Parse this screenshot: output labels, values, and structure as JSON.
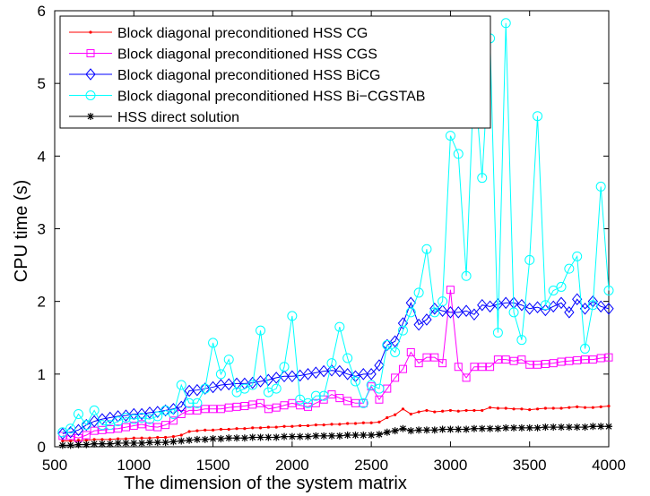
{
  "chart_data": {
    "type": "line",
    "xlabel": "The  dimension of the system matrix",
    "ylabel": "CPU time (s)",
    "xlim": [
      500,
      4000
    ],
    "ylim": [
      0,
      6
    ],
    "xticks": [
      500,
      1000,
      1500,
      2000,
      2500,
      3000,
      3500,
      4000
    ],
    "yticks": [
      0,
      1,
      2,
      3,
      4,
      5,
      6
    ],
    "grid": false,
    "legend_position": "top-left",
    "x": [
      550,
      600,
      650,
      700,
      750,
      800,
      850,
      900,
      950,
      1000,
      1050,
      1100,
      1150,
      1200,
      1250,
      1300,
      1350,
      1400,
      1450,
      1500,
      1550,
      1600,
      1650,
      1700,
      1750,
      1800,
      1850,
      1900,
      1950,
      2000,
      2050,
      2100,
      2150,
      2200,
      2250,
      2300,
      2350,
      2400,
      2450,
      2500,
      2550,
      2600,
      2650,
      2700,
      2750,
      2800,
      2850,
      2900,
      2950,
      3000,
      3050,
      3100,
      3150,
      3200,
      3250,
      3300,
      3350,
      3400,
      3450,
      3500,
      3550,
      3600,
      3650,
      3700,
      3750,
      3800,
      3850,
      3900,
      3950,
      4000
    ],
    "series": [
      {
        "name": "Block diagonal preconditioned HSS CG",
        "color": "#ff0000",
        "marker": "dot",
        "values": [
          0.08,
          0.08,
          0.09,
          0.09,
          0.1,
          0.1,
          0.1,
          0.11,
          0.11,
          0.12,
          0.12,
          0.12,
          0.13,
          0.13,
          0.14,
          0.16,
          0.21,
          0.22,
          0.23,
          0.23,
          0.24,
          0.24,
          0.25,
          0.25,
          0.26,
          0.26,
          0.27,
          0.27,
          0.28,
          0.28,
          0.29,
          0.29,
          0.3,
          0.3,
          0.31,
          0.31,
          0.32,
          0.32,
          0.33,
          0.33,
          0.34,
          0.4,
          0.44,
          0.52,
          0.45,
          0.48,
          0.5,
          0.48,
          0.49,
          0.5,
          0.49,
          0.5,
          0.5,
          0.5,
          0.54,
          0.53,
          0.53,
          0.52,
          0.52,
          0.51,
          0.52,
          0.53,
          0.53,
          0.53,
          0.54,
          0.55,
          0.54,
          0.54,
          0.55,
          0.56
        ]
      },
      {
        "name": "Block diagonal preconditioned HSS CGS",
        "color": "#ff00ff",
        "marker": "square",
        "values": [
          0.15,
          0.15,
          0.12,
          0.16,
          0.22,
          0.23,
          0.24,
          0.25,
          0.27,
          0.29,
          0.31,
          0.28,
          0.27,
          0.3,
          0.36,
          0.45,
          0.5,
          0.5,
          0.52,
          0.52,
          0.52,
          0.54,
          0.55,
          0.56,
          0.58,
          0.6,
          0.52,
          0.54,
          0.57,
          0.6,
          0.57,
          0.55,
          0.6,
          0.65,
          0.72,
          0.67,
          0.63,
          0.6,
          0.6,
          0.83,
          0.65,
          0.8,
          0.95,
          1.07,
          1.3,
          1.15,
          1.23,
          1.23,
          1.15,
          2.16,
          1.1,
          0.95,
          1.1,
          1.1,
          1.1,
          1.2,
          1.2,
          1.18,
          1.2,
          1.13,
          1.13,
          1.14,
          1.15,
          1.17,
          1.18,
          1.19,
          1.2,
          1.2,
          1.22,
          1.23
        ]
      },
      {
        "name": "Block diagonal preconditioned HSS BiCG",
        "color": "#0000ff",
        "marker": "diamond",
        "values": [
          0.18,
          0.2,
          0.23,
          0.3,
          0.35,
          0.38,
          0.4,
          0.42,
          0.43,
          0.45,
          0.45,
          0.47,
          0.48,
          0.5,
          0.52,
          0.55,
          0.77,
          0.78,
          0.8,
          0.82,
          0.85,
          0.86,
          0.87,
          0.87,
          0.88,
          0.9,
          0.92,
          0.95,
          0.97,
          0.97,
          0.98,
          1.0,
          1.02,
          1.04,
          1.05,
          1.04,
          1.0,
          0.97,
          1.0,
          1.0,
          1.12,
          1.4,
          1.45,
          1.7,
          1.98,
          1.68,
          1.75,
          1.9,
          1.87,
          1.85,
          1.85,
          1.87,
          1.82,
          1.95,
          1.93,
          1.96,
          1.98,
          1.98,
          1.95,
          1.9,
          1.92,
          1.88,
          1.93,
          1.98,
          1.85,
          2.03,
          1.9,
          2.0,
          1.93,
          1.9
        ]
      },
      {
        "name": "Block diagonal preconditioned HSS Bi−CGSTAB",
        "color": "#00ffff",
        "marker": "circle",
        "values": [
          0.2,
          0.25,
          0.45,
          0.3,
          0.5,
          0.3,
          0.3,
          0.35,
          0.4,
          0.38,
          0.4,
          0.38,
          0.42,
          0.5,
          0.45,
          0.85,
          0.6,
          0.6,
          0.8,
          1.43,
          1.0,
          1.2,
          0.75,
          0.8,
          0.85,
          1.6,
          0.75,
          0.8,
          1.1,
          1.8,
          0.65,
          0.6,
          0.7,
          0.7,
          1.15,
          1.65,
          1.22,
          0.9,
          0.6,
          0.85,
          0.8,
          1.4,
          1.3,
          1.6,
          1.85,
          2.12,
          2.72,
          1.85,
          2.0,
          4.28,
          4.03,
          2.35,
          5.15,
          3.7,
          5.62,
          1.57,
          5.83,
          1.85,
          1.47,
          2.57,
          4.55,
          1.95,
          2.15,
          2.2,
          2.45,
          2.62,
          1.35,
          1.95,
          3.58,
          2.15
        ]
      },
      {
        "name": "HSS direct solution",
        "color": "#000000",
        "marker": "asterisk",
        "values": [
          0.02,
          0.02,
          0.03,
          0.03,
          0.04,
          0.04,
          0.04,
          0.05,
          0.05,
          0.05,
          0.05,
          0.06,
          0.06,
          0.06,
          0.07,
          0.08,
          0.09,
          0.1,
          0.1,
          0.11,
          0.11,
          0.12,
          0.12,
          0.12,
          0.13,
          0.13,
          0.13,
          0.13,
          0.14,
          0.14,
          0.14,
          0.14,
          0.15,
          0.15,
          0.15,
          0.15,
          0.16,
          0.16,
          0.16,
          0.16,
          0.17,
          0.2,
          0.22,
          0.25,
          0.22,
          0.23,
          0.23,
          0.23,
          0.24,
          0.24,
          0.24,
          0.24,
          0.25,
          0.25,
          0.25,
          0.25,
          0.26,
          0.26,
          0.26,
          0.26,
          0.26,
          0.27,
          0.27,
          0.27,
          0.27,
          0.27,
          0.27,
          0.28,
          0.28,
          0.28
        ]
      }
    ]
  }
}
